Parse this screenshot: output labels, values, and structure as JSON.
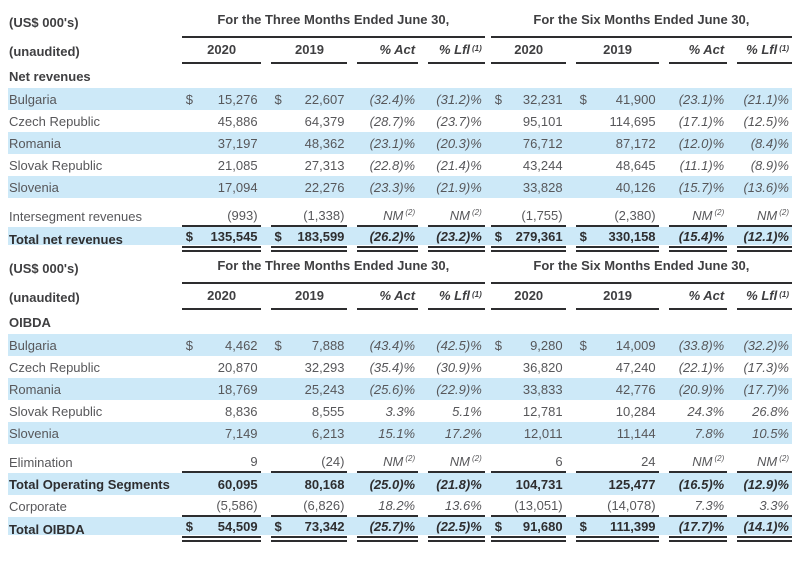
{
  "page": {
    "background": "#ffffff",
    "band_color": "#cde9f8",
    "rule_color": "#2d2d2f",
    "text_color": "#57575a",
    "heading_color": "#3f3f41"
  },
  "labels": {
    "units": "(US$ 000's)",
    "unaudited": "(unaudited)"
  },
  "period_headers": {
    "three_months": "For the Three Months Ended June 30,",
    "six_months": "For the Six Months Ended June 30,"
  },
  "column_headers": {
    "y2020": "2020",
    "y2019": "2019",
    "act": "% Act",
    "lfl": "% Lfl",
    "lfl_footnote": "(1)"
  },
  "nm_footnote": "(2)",
  "tables": [
    {
      "name": "net-revenues",
      "section_label": "Net revenues",
      "rows": [
        {
          "label": "Bulgaria",
          "shade": true,
          "cells": [
            {
              "c": "$",
              "v": "15,276"
            },
            {
              "c": "$",
              "v": "22,607"
            },
            {
              "v": "(32.4)%"
            },
            {
              "v": "(31.2)%"
            },
            {
              "c": "$",
              "v": "32,231"
            },
            {
              "c": "$",
              "v": "41,900"
            },
            {
              "v": "(23.1)%"
            },
            {
              "v": "(21.1)%"
            }
          ]
        },
        {
          "label": "Czech Republic",
          "cells": [
            {
              "v": "45,886"
            },
            {
              "v": "64,379"
            },
            {
              "v": "(28.7)%"
            },
            {
              "v": "(23.7)%"
            },
            {
              "v": "95,101"
            },
            {
              "v": "114,695"
            },
            {
              "v": "(17.1)%"
            },
            {
              "v": "(12.5)%"
            }
          ]
        },
        {
          "label": "Romania",
          "shade": true,
          "cells": [
            {
              "v": "37,197"
            },
            {
              "v": "48,362"
            },
            {
              "v": "(23.1)%"
            },
            {
              "v": "(20.3)%"
            },
            {
              "v": "76,712"
            },
            {
              "v": "87,172"
            },
            {
              "v": "(12.0)%"
            },
            {
              "v": "(8.4)%"
            }
          ]
        },
        {
          "label": "Slovak Republic",
          "cells": [
            {
              "v": "21,085"
            },
            {
              "v": "27,313"
            },
            {
              "v": "(22.8)%"
            },
            {
              "v": "(21.4)%"
            },
            {
              "v": "43,244"
            },
            {
              "v": "48,645"
            },
            {
              "v": "(11.1)%"
            },
            {
              "v": "(8.9)%"
            }
          ]
        },
        {
          "label": "Slovenia",
          "shade": true,
          "cells": [
            {
              "v": "17,094"
            },
            {
              "v": "22,276"
            },
            {
              "v": "(23.3)%"
            },
            {
              "v": "(21.9)%"
            },
            {
              "v": "33,828"
            },
            {
              "v": "40,126"
            },
            {
              "v": "(15.7)%"
            },
            {
              "v": "(13.6)%"
            }
          ]
        },
        {
          "label": "Intersegment revenues",
          "spacer_before": true,
          "rule": "single",
          "cells": [
            {
              "v": "(993)"
            },
            {
              "v": "(1,338)"
            },
            {
              "v": "NM",
              "fn": true
            },
            {
              "v": "NM",
              "fn": true
            },
            {
              "v": "(1,755)"
            },
            {
              "v": "(2,380)"
            },
            {
              "v": "NM",
              "fn": true
            },
            {
              "v": "NM",
              "fn": true
            }
          ]
        },
        {
          "label": "Total net revenues",
          "shade": true,
          "bold": true,
          "rule": "double",
          "cells": [
            {
              "c": "$",
              "v": "135,545"
            },
            {
              "c": "$",
              "v": "183,599"
            },
            {
              "v": "(26.2)%"
            },
            {
              "v": "(23.2)%"
            },
            {
              "c": "$",
              "v": "279,361"
            },
            {
              "c": "$",
              "v": "330,158"
            },
            {
              "v": "(15.4)%"
            },
            {
              "v": "(12.1)%"
            }
          ]
        }
      ]
    },
    {
      "name": "oibda",
      "section_label": "OIBDA",
      "rows": [
        {
          "label": "Bulgaria",
          "shade": true,
          "cells": [
            {
              "c": "$",
              "v": "4,462"
            },
            {
              "c": "$",
              "v": "7,888"
            },
            {
              "v": "(43.4)%"
            },
            {
              "v": "(42.5)%"
            },
            {
              "c": "$",
              "v": "9,280"
            },
            {
              "c": "$",
              "v": "14,009"
            },
            {
              "v": "(33.8)%"
            },
            {
              "v": "(32.2)%"
            }
          ]
        },
        {
          "label": "Czech Republic",
          "cells": [
            {
              "v": "20,870"
            },
            {
              "v": "32,293"
            },
            {
              "v": "(35.4)%"
            },
            {
              "v": "(30.9)%"
            },
            {
              "v": "36,820"
            },
            {
              "v": "47,240"
            },
            {
              "v": "(22.1)%"
            },
            {
              "v": "(17.3)%"
            }
          ]
        },
        {
          "label": "Romania",
          "shade": true,
          "cells": [
            {
              "v": "18,769"
            },
            {
              "v": "25,243"
            },
            {
              "v": "(25.6)%"
            },
            {
              "v": "(22.9)%"
            },
            {
              "v": "33,833"
            },
            {
              "v": "42,776"
            },
            {
              "v": "(20.9)%"
            },
            {
              "v": "(17.7)%"
            }
          ]
        },
        {
          "label": "Slovak Republic",
          "cells": [
            {
              "v": "8,836"
            },
            {
              "v": "8,555"
            },
            {
              "v": "3.3%"
            },
            {
              "v": "5.1%"
            },
            {
              "v": "12,781"
            },
            {
              "v": "10,284"
            },
            {
              "v": "24.3%"
            },
            {
              "v": "26.8%"
            }
          ]
        },
        {
          "label": "Slovenia",
          "shade": true,
          "cells": [
            {
              "v": "7,149"
            },
            {
              "v": "6,213"
            },
            {
              "v": "15.1%"
            },
            {
              "v": "17.2%"
            },
            {
              "v": "12,011"
            },
            {
              "v": "11,144"
            },
            {
              "v": "7.8%"
            },
            {
              "v": "10.5%"
            }
          ]
        },
        {
          "label": "Elimination",
          "spacer_before": true,
          "rule": "single",
          "cells": [
            {
              "v": "9"
            },
            {
              "v": "(24)"
            },
            {
              "v": "NM",
              "fn": true
            },
            {
              "v": "NM",
              "fn": true
            },
            {
              "v": "6"
            },
            {
              "v": "24"
            },
            {
              "v": "NM",
              "fn": true
            },
            {
              "v": "NM",
              "fn": true
            }
          ]
        },
        {
          "label": "Total Operating Segments",
          "shade": true,
          "bold": true,
          "cells": [
            {
              "v": "60,095"
            },
            {
              "v": "80,168"
            },
            {
              "v": "(25.0)%"
            },
            {
              "v": "(21.8)%"
            },
            {
              "v": "104,731"
            },
            {
              "v": "125,477"
            },
            {
              "v": "(16.5)%"
            },
            {
              "v": "(12.9)%"
            }
          ]
        },
        {
          "label": "Corporate",
          "rule": "single",
          "cells": [
            {
              "v": "(5,586)"
            },
            {
              "v": "(6,826)"
            },
            {
              "v": "18.2%"
            },
            {
              "v": "13.6%"
            },
            {
              "v": "(13,051)"
            },
            {
              "v": "(14,078)"
            },
            {
              "v": "7.3%"
            },
            {
              "v": "3.3%"
            }
          ]
        },
        {
          "label": "Total OIBDA",
          "shade": true,
          "bold": true,
          "rule": "double",
          "cells": [
            {
              "c": "$",
              "v": "54,509"
            },
            {
              "c": "$",
              "v": "73,342"
            },
            {
              "v": "(25.7)%"
            },
            {
              "v": "(22.5)%"
            },
            {
              "c": "$",
              "v": "91,680"
            },
            {
              "c": "$",
              "v": "111,399"
            },
            {
              "v": "(17.7)%"
            },
            {
              "v": "(14.1)%"
            }
          ]
        }
      ]
    }
  ]
}
